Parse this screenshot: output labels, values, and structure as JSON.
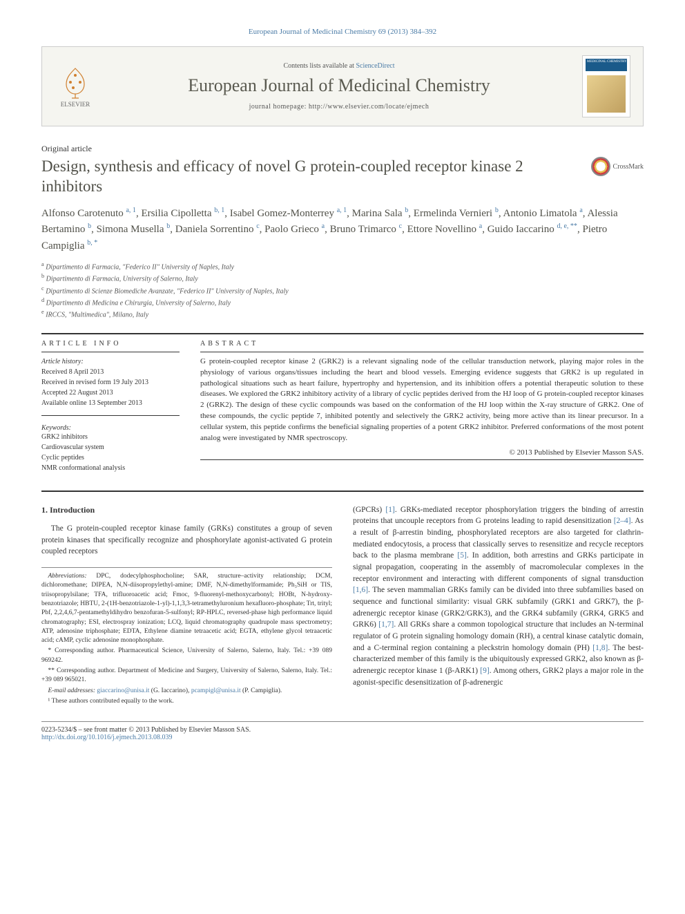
{
  "journal_ref": "European Journal of Medicinal Chemistry 69 (2013) 384–392",
  "header": {
    "contents_prefix": "Contents lists available at ",
    "contents_link": "ScienceDirect",
    "journal_name": "European Journal of Medicinal Chemistry",
    "homepage_prefix": "journal homepage: ",
    "homepage_url": "http://www.elsevier.com/locate/ejmech",
    "publisher_name": "ELSEVIER",
    "cover_label": "MEDICINAL CHEMISTRY"
  },
  "article_type": "Original article",
  "title": "Design, synthesis and efficacy of novel G protein-coupled receptor kinase 2 inhibitors",
  "crossmark_label": "CrossMark",
  "authors_html": "Alfonso Carotenuto <sup>a, 1</sup>, Ersilia Cipolletta <sup>b, 1</sup>, Isabel Gomez-Monterrey <sup>a, 1</sup>, Marina Sala <sup>b</sup>, Ermelinda Vernieri <sup>b</sup>, Antonio Limatola <sup>a</sup>, Alessia Bertamino <sup>b</sup>, Simona Musella <sup>b</sup>, Daniela Sorrentino <sup>c</sup>, Paolo Grieco <sup>a</sup>, Bruno Trimarco <sup>c</sup>, Ettore Novellino <sup>a</sup>, Guido Iaccarino <sup>d, e, **</sup>, Pietro Campiglia <sup>b, *</sup>",
  "affiliations": [
    {
      "sup": "a",
      "text": "Dipartimento di Farmacia, \"Federico II\" University of Naples, Italy"
    },
    {
      "sup": "b",
      "text": "Dipartimento di Farmacia, University of Salerno, Italy"
    },
    {
      "sup": "c",
      "text": "Dipartimento di Scienze Biomediche Avanzate, \"Federico II\" University of Naples, Italy"
    },
    {
      "sup": "d",
      "text": "Dipartimento di Medicina e Chirurgia, University of Salerno, Italy"
    },
    {
      "sup": "e",
      "text": "IRCCS, \"Multimedica\", Milano, Italy"
    }
  ],
  "info_heading": "ARTICLE INFO",
  "abstract_heading": "ABSTRACT",
  "history": {
    "label": "Article history:",
    "received": "Received 8 April 2013",
    "revised": "Received in revised form 19 July 2013",
    "accepted": "Accepted 22 August 2013",
    "online": "Available online 13 September 2013"
  },
  "keywords_label": "Keywords:",
  "keywords": [
    "GRK2 inhibitors",
    "Cardiovascular system",
    "Cyclic peptides",
    "NMR conformational analysis"
  ],
  "abstract": "G protein-coupled receptor kinase 2 (GRK2) is a relevant signaling node of the cellular transduction network, playing major roles in the physiology of various organs/tissues including the heart and blood vessels. Emerging evidence suggests that GRK2 is up regulated in pathological situations such as heart failure, hypertrophy and hypertension, and its inhibition offers a potential therapeutic solution to these diseases. We explored the GRK2 inhibitory activity of a library of cyclic peptides derived from the HJ loop of G protein-coupled receptor kinases 2 (GRK2). The design of these cyclic compounds was based on the conformation of the HJ loop within the X-ray structure of GRK2. One of these compounds, the cyclic peptide 7, inhibited potently and selectively the GRK2 activity, being more active than its linear precursor. In a cellular system, this peptide confirms the beneficial signaling properties of a potent GRK2 inhibitor. Preferred conformations of the most potent analog were investigated by NMR spectroscopy.",
  "copyright": "© 2013 Published by Elsevier Masson SAS.",
  "section1": {
    "heading": "1. Introduction",
    "para1": "The G protein-coupled receptor kinase family (GRKs) constitutes a group of seven protein kinases that specifically recognize and phosphorylate agonist-activated G protein coupled receptors",
    "para2_pre": "(GPCRs) ",
    "ref1": "[1]",
    "para2_a": ". GRKs-mediated receptor phosphorylation triggers the binding of arrestin proteins that uncouple receptors from G proteins leading to rapid desensitization ",
    "ref2": "[2–4]",
    "para2_b": ". As a result of β-arrestin binding, phosphorylated receptors are also targeted for clathrin-mediated endocytosis, a process that classically serves to resensitize and recycle receptors back to the plasma membrane ",
    "ref5": "[5]",
    "para2_c": ". In addition, both arrestins and GRKs participate in signal propagation, cooperating in the assembly of macromolecular complexes in the receptor environment and interacting with different components of signal transduction ",
    "ref16": "[1,6]",
    "para2_d": ". The seven mammalian GRKs family can be divided into three subfamilies based on sequence and functional similarity: visual GRK subfamily (GRK1 and GRK7), the β-adrenergic receptor kinase (GRK2/GRK3), and the GRK4 subfamily (GRK4, GRK5 and GRK6) ",
    "ref17": "[1,7]",
    "para2_e": ". All GRKs share a common topological structure that includes an N-terminal regulator of G protein signaling homology domain (RH), a central kinase catalytic domain, and a C-terminal region containing a pleckstrin homology domain (PH) ",
    "ref18": "[1,8]",
    "para2_f": ". The best-characterized member of this family is the ubiquitously expressed GRK2, also known as β-adrenergic receptor kinase 1 (β-ARK1) ",
    "ref9": "[9]",
    "para2_g": ". Among others, GRK2 plays a major role in the agonist-specific desensitization of β-adrenergic"
  },
  "footnotes": {
    "abbrev_label": "Abbreviations:",
    "abbrev": " DPC, dodecylphosphocholine; SAR, structure–activity relationship; DCM, dichloromethane; DIPEA, N,N-diisopropylethyl-amine; DMF, N,N-dimethylformamide; Ph₃SiH or TIS, triisopropylsilane; TFA, trifluoroacetic acid; Fmoc, 9-fluorenyl-methoxycarbonyl; HOBt, N-hydroxy-benzotriazole; HBTU, 2-(1H-benzotriazole-1-yl)-1,1,3,3-tetramethyluronium hexafluoro-phosphate; Trt, trityl; Pbf, 2,2,4,6,7-pentamethyldihydro benzofuran-5-sulfonyl; RP-HPLC, reversed-phase high performance liquid chromatography; ESI, electrospray ionization; LCQ, liquid chromatography quadrupole mass spectrometry; ATP, adenosine triphosphate; EDTA, Ethylene diamine tetraacetic acid; EGTA, ethylene glycol tetraacetic acid; cAMP, cyclic adenosine monophosphate.",
    "corr1": "* Corresponding author. Pharmaceutical Science, University of Salerno, Salerno, Italy. Tel.: +39 089 969242.",
    "corr2": "** Corresponding author. Department of Medicine and Surgery, University of Salerno, Salerno, Italy. Tel.: +39 089 965021.",
    "email_label": "E-mail addresses:",
    "email1": "giaccarino@unisa.it",
    "email1_who": " (G. Iaccarino), ",
    "email2": "pcampigl@unisa.it",
    "email2_who": " (P. Campiglia).",
    "equal": "¹ These authors contributed equally to the work."
  },
  "footer": {
    "issn": "0223-5234/$ – see front matter © 2013 Published by Elsevier Masson SAS.",
    "doi_url": "http://dx.doi.org/10.1016/j.ejmech.2013.08.039"
  },
  "colors": {
    "link": "#4a7ba6",
    "heading": "#505048",
    "text": "#333333",
    "border": "#cccccc"
  }
}
